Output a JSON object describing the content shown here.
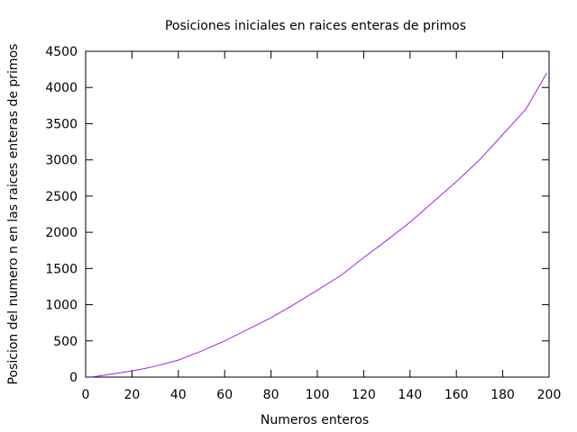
{
  "chart_data": {
    "type": "line",
    "title": "Posiciones iniciales en raices enteras de primos",
    "xlabel": "Numeros enteros",
    "ylabel": "Posicion del numero n en las raices enteras de primos",
    "xlim": [
      0,
      200
    ],
    "ylim": [
      0,
      4500
    ],
    "x_ticks": [
      0,
      20,
      40,
      60,
      80,
      100,
      120,
      140,
      160,
      180,
      200
    ],
    "y_ticks": [
      0,
      500,
      1000,
      1500,
      2000,
      2500,
      3000,
      3500,
      4000,
      4500
    ],
    "grid": false,
    "legend": "none",
    "series": [
      {
        "color": "#a020f0",
        "x": [
          2,
          5,
          10,
          15,
          20,
          25,
          30,
          40,
          50,
          60,
          70,
          80,
          90,
          100,
          110,
          120,
          130,
          140,
          150,
          160,
          170,
          180,
          190,
          199
        ],
        "y": [
          2,
          12,
          35,
          60,
          85,
          115,
          150,
          235,
          360,
          500,
          660,
          820,
          1005,
          1200,
          1400,
          1650,
          1890,
          2140,
          2420,
          2700,
          3000,
          3350,
          3700,
          4200
        ]
      }
    ]
  }
}
